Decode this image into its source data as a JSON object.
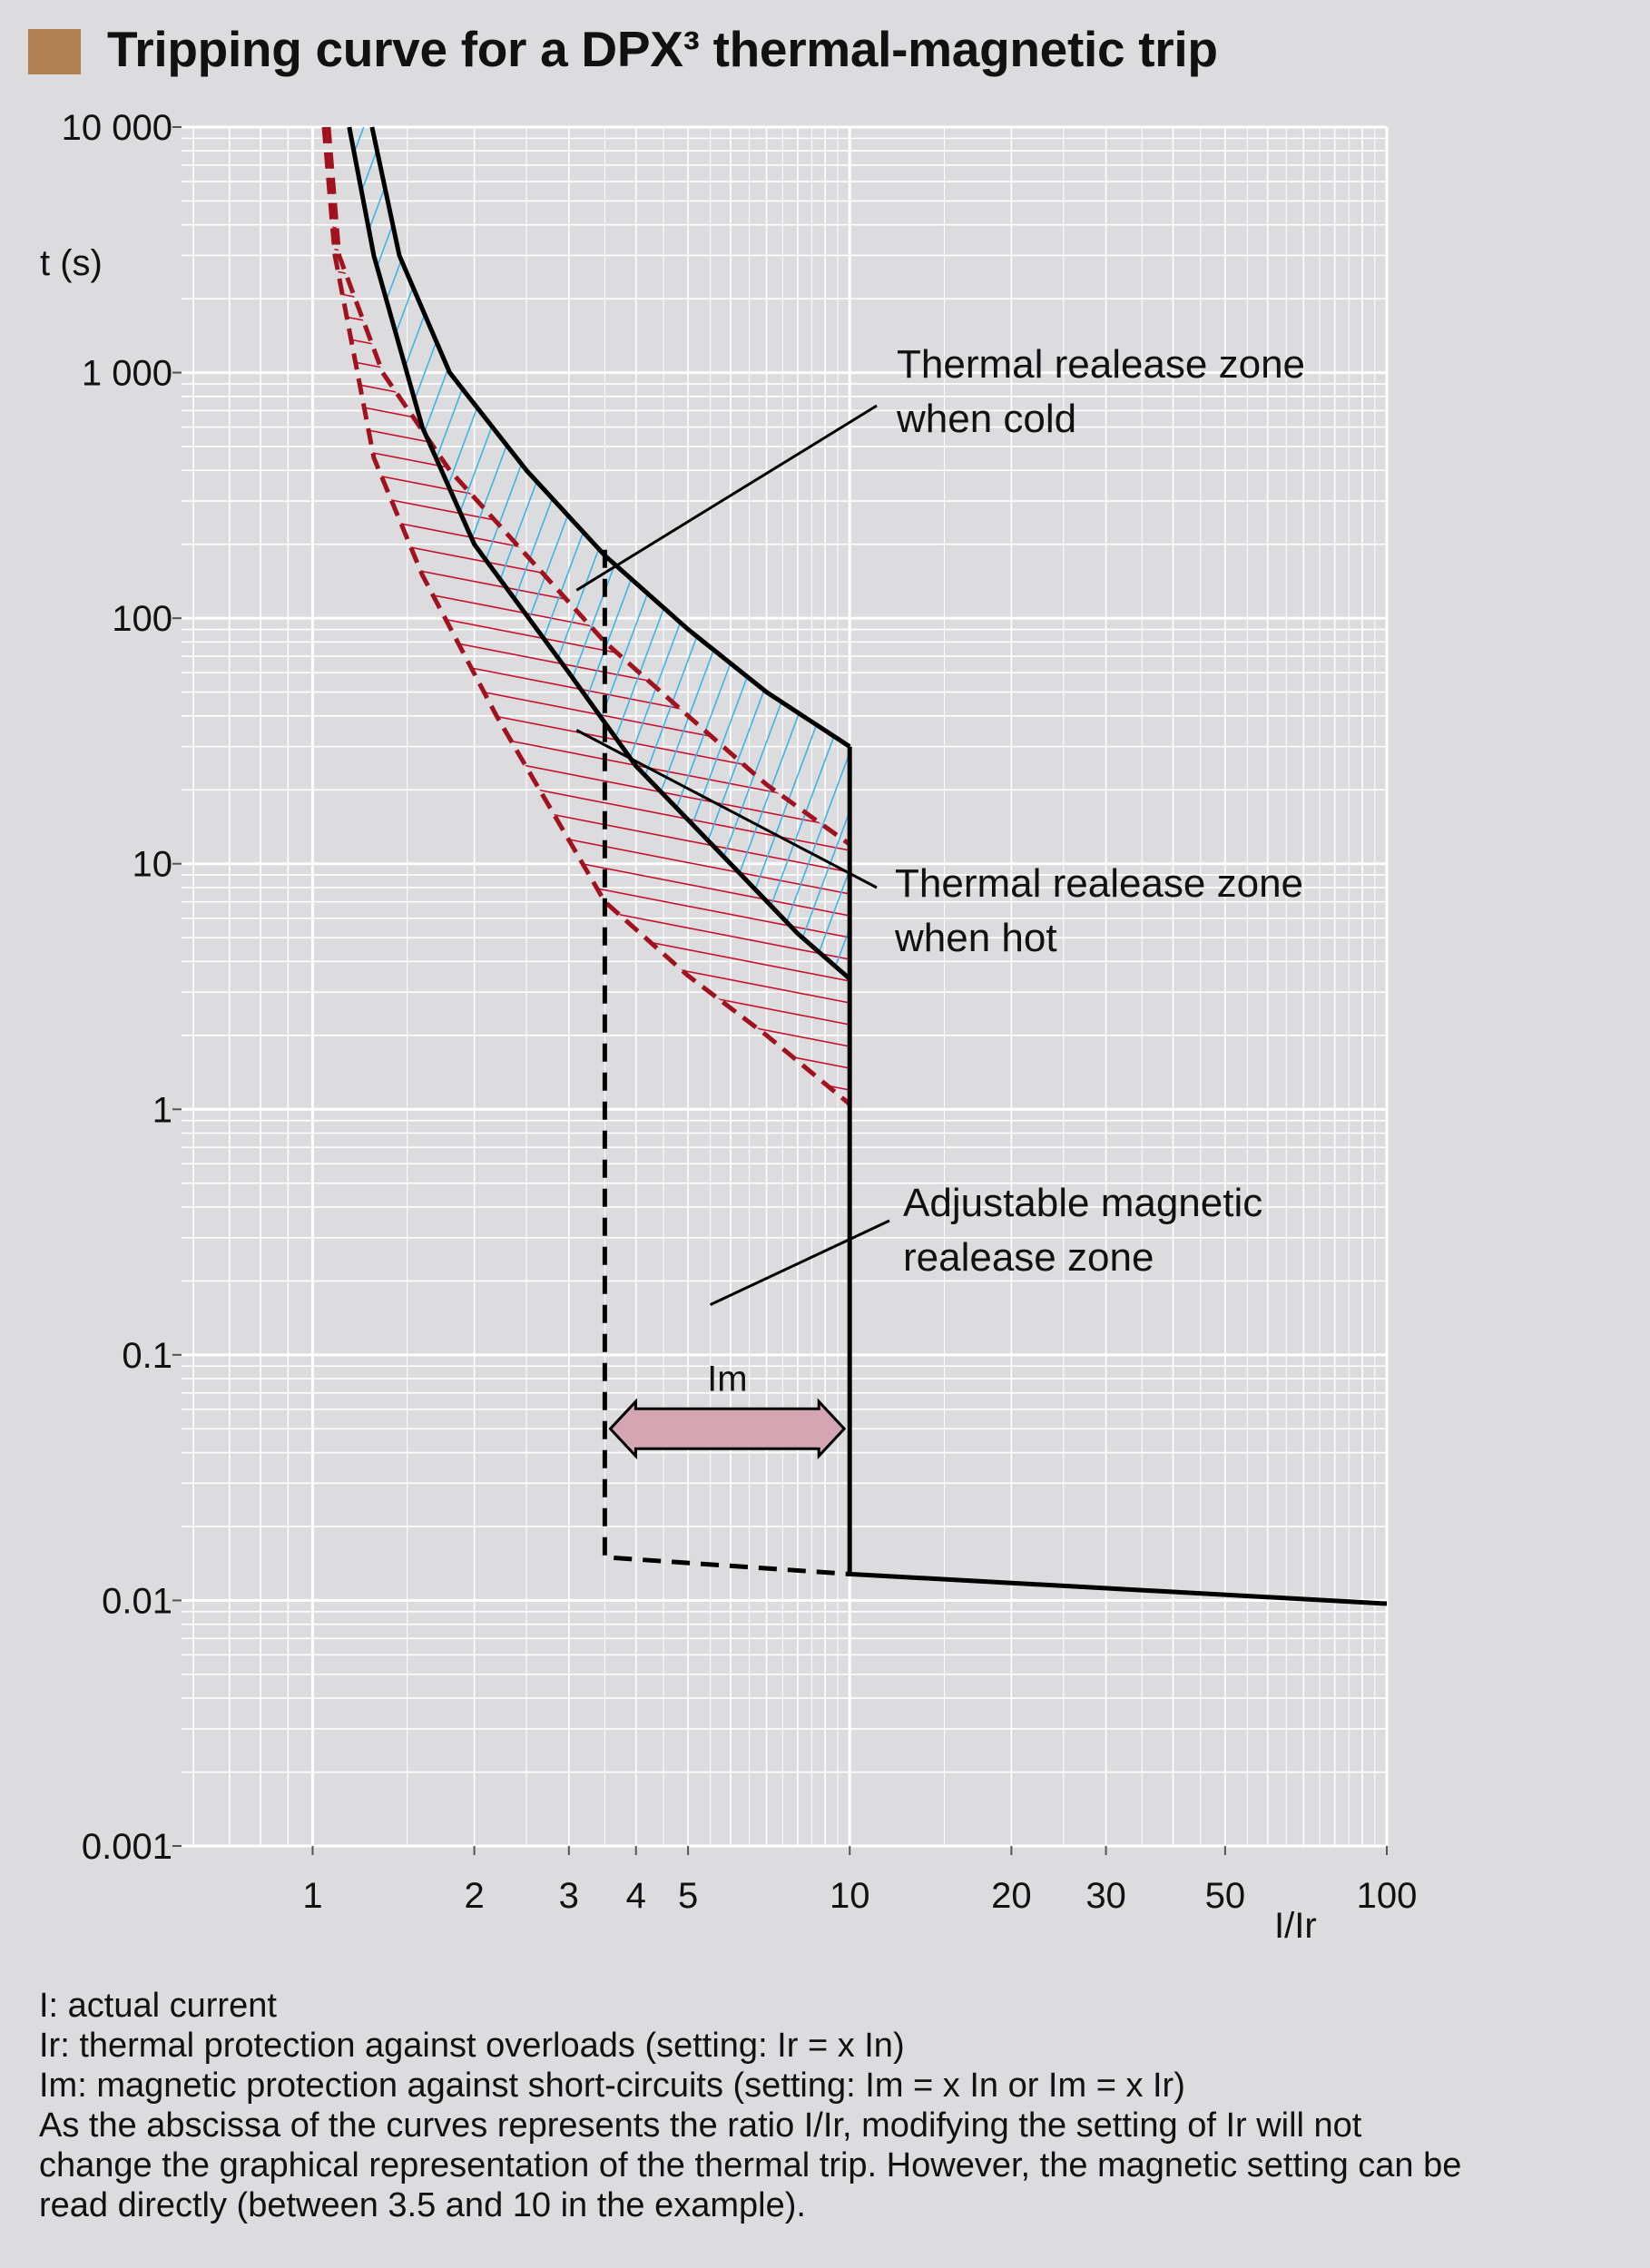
{
  "title": "Tripping curve for a DPX³ thermal-magnetic trip",
  "colors": {
    "background": "#dcdcdf",
    "plot_background": "#dcdcdf",
    "title_square": "#b08050",
    "grid": "#ffffff",
    "cold_hatch": "#3fb3e6",
    "hot_hatch": "#c8102e",
    "hot_dashed": "#a0121d",
    "curve": "#000000",
    "im_arrow": "#d4a5b3"
  },
  "chart_data": {
    "type": "line",
    "title": "Tripping curve for a DPX³ thermal-magnetic trip",
    "xlabel": "I/Ir",
    "ylabel": "t (s)",
    "xscale": "log",
    "yscale": "log",
    "xlim": [
      0.57,
      100
    ],
    "ylim": [
      0.001,
      10000
    ],
    "grid": true,
    "x_ticks": [
      {
        "value": 1,
        "label": "1"
      },
      {
        "value": 2,
        "label": "2"
      },
      {
        "value": 3,
        "label": "3"
      },
      {
        "value": 4,
        "label": "4"
      },
      {
        "value": 5,
        "label": "5"
      },
      {
        "value": 10,
        "label": "10"
      },
      {
        "value": 20,
        "label": "20"
      },
      {
        "value": 30,
        "label": "30"
      },
      {
        "value": 50,
        "label": "50"
      },
      {
        "value": 100,
        "label": "100"
      }
    ],
    "y_ticks": [
      {
        "value": 10000,
        "label": "10 000"
      },
      {
        "value": 1000,
        "label": "1 000"
      },
      {
        "value": 100,
        "label": "100"
      },
      {
        "value": 10,
        "label": "10"
      },
      {
        "value": 1,
        "label": "1"
      },
      {
        "value": 0.1,
        "label": "0.1"
      },
      {
        "value": 0.01,
        "label": "0.01"
      },
      {
        "value": 0.001,
        "label": "0.001"
      }
    ],
    "series": [
      {
        "style": "cold-upper",
        "points": [
          [
            1.29,
            10000
          ],
          [
            1.45,
            3000
          ],
          [
            1.8,
            1000
          ],
          [
            2.5,
            400
          ],
          [
            3.5,
            180
          ],
          [
            5,
            90
          ],
          [
            7,
            50
          ],
          [
            10,
            30
          ]
        ]
      },
      {
        "style": "cold-lower",
        "points": [
          [
            1.17,
            10000
          ],
          [
            1.3,
            3000
          ],
          [
            1.6,
            600
          ],
          [
            2,
            200
          ],
          [
            3,
            60
          ],
          [
            4,
            25
          ],
          [
            6,
            10
          ],
          [
            8,
            5.2
          ],
          [
            10,
            3.4
          ]
        ]
      },
      {
        "style": "hot-upper",
        "points": [
          [
            1.07,
            10000
          ],
          [
            1.12,
            3000
          ],
          [
            1.35,
            1000
          ],
          [
            1.8,
            400
          ],
          [
            3.5,
            80
          ],
          [
            5,
            40
          ],
          [
            7,
            21
          ],
          [
            10,
            12
          ]
        ]
      },
      {
        "style": "hot-lower",
        "points": [
          [
            1.05,
            10000
          ],
          [
            1.1,
            3000
          ],
          [
            1.3,
            450
          ],
          [
            1.6,
            150
          ],
          [
            2.2,
            40
          ],
          [
            3.5,
            7
          ],
          [
            5,
            3.5
          ],
          [
            7,
            2
          ],
          [
            10,
            1.05
          ]
        ]
      },
      {
        "style": "magnetic-max",
        "points": [
          [
            10,
            30
          ],
          [
            10,
            0.0128
          ],
          [
            100,
            0.0097
          ]
        ]
      },
      {
        "style": "magnetic-min",
        "points": [
          [
            3.5,
            190
          ],
          [
            3.5,
            0.015
          ],
          [
            10,
            0.0128
          ]
        ]
      }
    ],
    "annotations": [
      {
        "text": [
          "Thermal realease zone",
          "when cold"
        ],
        "point_at": [
          3.1,
          130
        ]
      },
      {
        "text": [
          "Thermal realease zone",
          "when hot"
        ],
        "point_at": [
          3.1,
          35
        ]
      },
      {
        "text": [
          "Adjustable magnetic",
          "realease zone"
        ],
        "point_at": [
          5.5,
          0.16
        ]
      }
    ],
    "im_arrow": {
      "label": "Im",
      "from": 3.5,
      "to": 10,
      "y": 0.05
    }
  },
  "notes": [
    "I: actual current",
    "Ir: thermal protection against overloads (setting: Ir = x In)",
    "Im: magnetic protection against short-circuits (setting: Im = x In or Im = x Ir)",
    "As the abscissa of the curves represents the ratio I/Ir, modifying the setting of Ir will not",
    "change the graphical representation of the thermal trip. However, the magnetic setting can be",
    "read directly (between 3.5 and 10 in the example)."
  ]
}
